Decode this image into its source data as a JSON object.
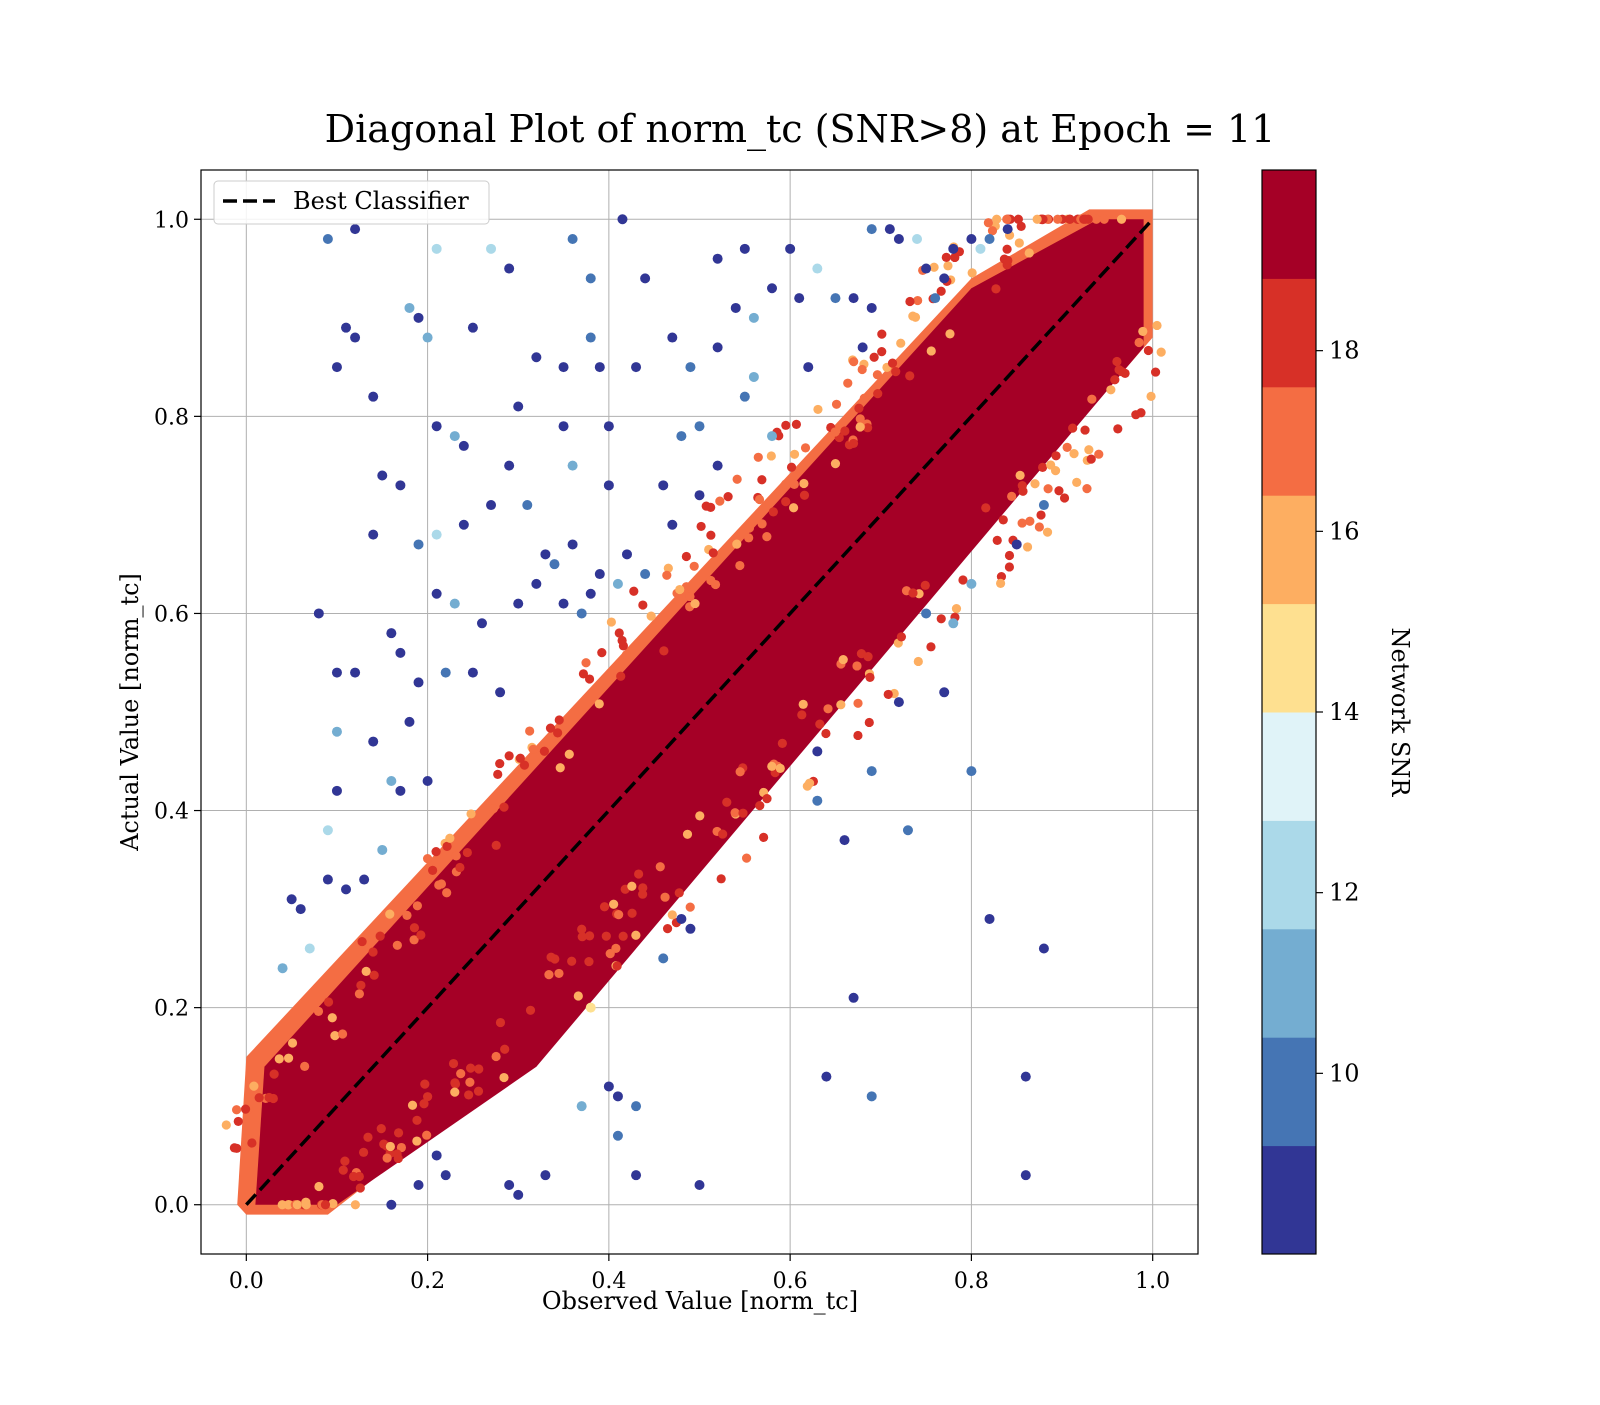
{
  "chart_data": {
    "type": "scatter",
    "title": "Diagonal Plot of norm_tc (SNR>8) at Epoch = 11",
    "xlabel": "Observed Value [norm_tc]",
    "ylabel": "Actual Value [norm_tc]",
    "xlim": [
      -0.05,
      1.05
    ],
    "ylim": [
      -0.05,
      1.05
    ],
    "xticks": [
      "0.0",
      "0.2",
      "0.4",
      "0.6",
      "0.8",
      "1.0"
    ],
    "yticks": [
      "0.0",
      "0.2",
      "0.4",
      "0.6",
      "0.8",
      "1.0"
    ],
    "grid": true,
    "legend": {
      "placement": "upper-left",
      "entries": [
        {
          "label": "Best Classifier",
          "style": "dashed",
          "color": "#000000"
        }
      ]
    },
    "reference_line": {
      "name": "Best Classifier",
      "x": [
        0,
        1
      ],
      "y": [
        0,
        1
      ]
    },
    "colorbar": {
      "label": "Network SNR",
      "range": [
        8,
        20
      ],
      "ticks": [
        "10",
        "12",
        "14",
        "16",
        "18"
      ],
      "tick_values": [
        10,
        12,
        14,
        16,
        18
      ],
      "colors": [
        "#313695",
        "#4575b4",
        "#74add1",
        "#abd9e9",
        "#e0f3f8",
        "#fee090",
        "#fdae61",
        "#f46d43",
        "#d73027",
        "#a50026"
      ]
    },
    "series": [
      {
        "name": "",
        "points": [
          [
            0.09,
            0.98,
            10
          ],
          [
            0.12,
            0.99,
            9
          ],
          [
            0.36,
            0.98,
            10
          ],
          [
            0.415,
            1.0,
            9
          ],
          [
            0.21,
            0.97,
            12
          ],
          [
            0.27,
            0.97,
            12.5
          ],
          [
            0.29,
            0.95,
            9
          ],
          [
            0.38,
            0.94,
            10
          ],
          [
            0.44,
            0.94,
            9
          ],
          [
            0.52,
            0.96,
            9
          ],
          [
            0.55,
            0.97,
            9
          ],
          [
            0.6,
            0.97,
            9
          ],
          [
            0.18,
            0.91,
            11
          ],
          [
            0.19,
            0.9,
            9
          ],
          [
            0.11,
            0.89,
            9
          ],
          [
            0.12,
            0.88,
            9
          ],
          [
            0.25,
            0.89,
            9
          ],
          [
            0.2,
            0.88,
            11.5
          ],
          [
            0.38,
            0.88,
            10
          ],
          [
            0.1,
            0.85,
            9
          ],
          [
            0.32,
            0.86,
            9
          ],
          [
            0.35,
            0.85,
            9
          ],
          [
            0.39,
            0.85,
            9
          ],
          [
            0.43,
            0.85,
            9
          ],
          [
            0.14,
            0.82,
            9
          ],
          [
            0.17,
            0.73,
            9
          ],
          [
            0.15,
            0.74,
            9
          ],
          [
            0.21,
            0.79,
            9
          ],
          [
            0.23,
            0.78,
            11
          ],
          [
            0.3,
            0.81,
            9
          ],
          [
            0.35,
            0.79,
            9
          ],
          [
            0.4,
            0.79,
            9
          ],
          [
            0.24,
            0.77,
            9
          ],
          [
            0.29,
            0.75,
            9
          ],
          [
            0.36,
            0.75,
            11
          ],
          [
            0.4,
            0.73,
            9
          ],
          [
            0.14,
            0.68,
            9
          ],
          [
            0.19,
            0.67,
            10
          ],
          [
            0.21,
            0.68,
            12
          ],
          [
            0.24,
            0.69,
            9
          ],
          [
            0.27,
            0.71,
            9
          ],
          [
            0.31,
            0.71,
            10
          ],
          [
            0.08,
            0.6,
            9
          ],
          [
            0.21,
            0.62,
            9
          ],
          [
            0.23,
            0.61,
            11
          ],
          [
            0.16,
            0.58,
            9
          ],
          [
            0.17,
            0.56,
            9
          ],
          [
            0.1,
            0.54,
            9
          ],
          [
            0.12,
            0.54,
            9
          ],
          [
            0.1,
            0.48,
            11
          ],
          [
            0.14,
            0.47,
            9
          ],
          [
            0.18,
            0.49,
            9
          ],
          [
            0.19,
            0.53,
            9
          ],
          [
            0.22,
            0.54,
            10
          ],
          [
            0.25,
            0.54,
            9
          ],
          [
            0.26,
            0.59,
            9
          ],
          [
            0.28,
            0.52,
            9
          ],
          [
            0.1,
            0.42,
            9
          ],
          [
            0.16,
            0.43,
            11
          ],
          [
            0.17,
            0.42,
            9
          ],
          [
            0.2,
            0.43,
            9
          ],
          [
            0.09,
            0.38,
            12
          ],
          [
            0.11,
            0.32,
            9
          ],
          [
            0.13,
            0.33,
            9
          ],
          [
            0.15,
            0.36,
            11
          ],
          [
            0.06,
            0.3,
            9
          ],
          [
            0.05,
            0.31,
            9
          ],
          [
            0.04,
            0.24,
            11
          ],
          [
            0.07,
            0.26,
            12
          ],
          [
            0.09,
            0.33,
            9
          ],
          [
            0.56,
            0.9,
            11
          ],
          [
            0.58,
            0.93,
            9
          ],
          [
            0.61,
            0.92,
            9
          ],
          [
            0.62,
            0.85,
            9
          ],
          [
            0.65,
            0.92,
            10
          ],
          [
            0.67,
            0.92,
            9
          ],
          [
            0.68,
            0.87,
            9
          ],
          [
            0.69,
            0.91,
            9
          ],
          [
            0.58,
            0.78,
            11.5
          ],
          [
            0.63,
            0.95,
            12
          ],
          [
            0.47,
            0.69,
            9
          ],
          [
            0.5,
            0.72,
            9
          ],
          [
            0.46,
            0.73,
            9
          ],
          [
            0.48,
            0.78,
            10
          ],
          [
            0.5,
            0.79,
            10
          ],
          [
            0.52,
            0.75,
            9
          ],
          [
            0.55,
            0.82,
            10
          ],
          [
            0.56,
            0.84,
            11
          ],
          [
            0.47,
            0.88,
            9
          ],
          [
            0.49,
            0.85,
            9.5
          ],
          [
            0.52,
            0.87,
            9
          ],
          [
            0.54,
            0.91,
            9
          ],
          [
            0.69,
            0.99,
            10
          ],
          [
            0.71,
            0.99,
            9
          ],
          [
            0.72,
            0.98,
            9
          ],
          [
            0.74,
            0.98,
            12
          ],
          [
            0.75,
            0.95,
            9
          ],
          [
            0.77,
            0.94,
            9
          ],
          [
            0.78,
            0.97,
            9
          ],
          [
            0.8,
            0.98,
            9
          ],
          [
            0.81,
            0.97,
            12
          ],
          [
            0.82,
            0.98,
            10
          ],
          [
            0.84,
            0.99,
            9
          ],
          [
            0.76,
            0.92,
            10
          ],
          [
            0.33,
            0.66,
            9
          ],
          [
            0.34,
            0.65,
            10
          ],
          [
            0.36,
            0.67,
            9
          ],
          [
            0.38,
            0.62,
            9
          ],
          [
            0.39,
            0.64,
            9
          ],
          [
            0.41,
            0.63,
            11
          ],
          [
            0.42,
            0.66,
            9
          ],
          [
            0.44,
            0.64,
            10
          ],
          [
            0.3,
            0.61,
            9
          ],
          [
            0.32,
            0.63,
            9
          ],
          [
            0.35,
            0.61,
            9
          ],
          [
            0.37,
            0.6,
            10
          ],
          [
            0.63,
            0.41,
            10
          ],
          [
            0.66,
            0.37,
            9
          ],
          [
            0.69,
            0.44,
            10
          ],
          [
            0.73,
            0.38,
            10
          ],
          [
            0.72,
            0.51,
            9
          ],
          [
            0.77,
            0.52,
            9
          ],
          [
            0.8,
            0.44,
            10
          ],
          [
            0.63,
            0.46,
            9
          ],
          [
            0.82,
            0.29,
            9
          ],
          [
            0.88,
            0.26,
            9
          ],
          [
            0.67,
            0.21,
            9
          ],
          [
            0.64,
            0.13,
            9
          ],
          [
            0.69,
            0.11,
            10
          ],
          [
            0.86,
            0.13,
            9
          ],
          [
            0.86,
            0.03,
            9
          ],
          [
            0.78,
            0.59,
            11
          ],
          [
            0.75,
            0.6,
            10
          ],
          [
            0.8,
            0.63,
            11
          ],
          [
            0.85,
            0.67,
            9
          ],
          [
            0.88,
            0.71,
            10
          ],
          [
            0.5,
            0.02,
            9
          ],
          [
            0.43,
            0.03,
            9
          ],
          [
            0.33,
            0.03,
            9
          ],
          [
            0.29,
            0.02,
            9
          ],
          [
            0.3,
            0.01,
            9
          ],
          [
            0.4,
            0.12,
            9
          ],
          [
            0.41,
            0.11,
            9
          ],
          [
            0.43,
            0.1,
            10
          ],
          [
            0.37,
            0.1,
            11
          ],
          [
            0.41,
            0.07,
            10
          ],
          [
            0.22,
            0.03,
            9
          ],
          [
            0.19,
            0.02,
            9
          ],
          [
            0.16,
            0.0,
            9
          ],
          [
            0.21,
            0.05,
            9
          ],
          [
            0.46,
            0.25,
            10
          ],
          [
            0.48,
            0.29,
            9
          ],
          [
            0.49,
            0.28,
            9
          ],
          [
            0.38,
            0.2,
            14
          ]
        ]
      }
    ]
  }
}
